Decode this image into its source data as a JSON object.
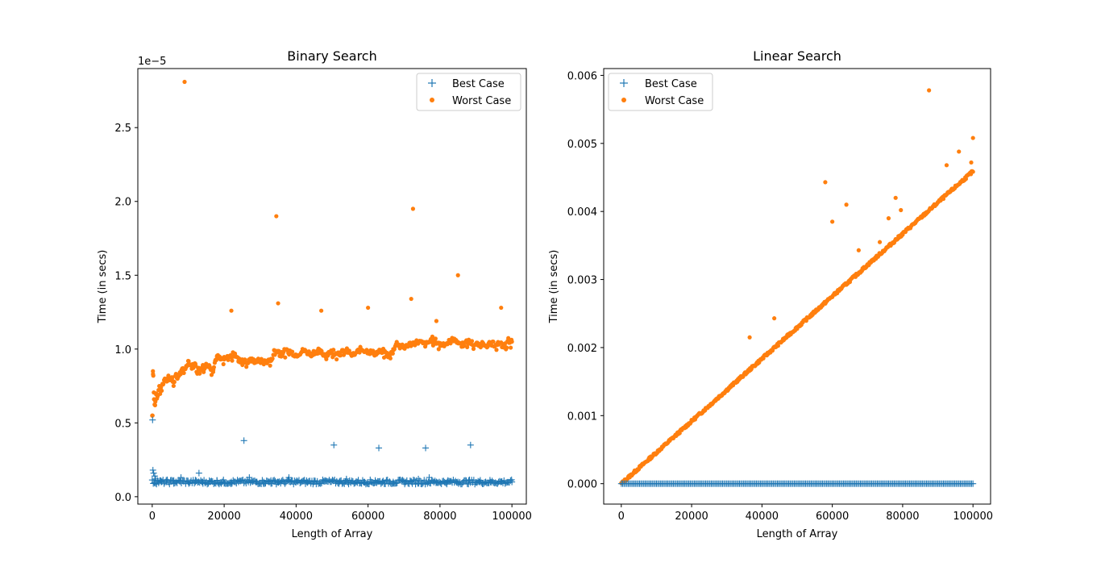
{
  "chart_data": [
    {
      "type": "scatter",
      "title": "Binary Search",
      "xlabel": "Length of Array",
      "ylabel": "Time (in secs)",
      "y_offset_label": "1e−5",
      "xlim": [
        -4000,
        104000
      ],
      "ylim": [
        -0.05,
        2.9
      ],
      "xticks": [
        0,
        20000,
        40000,
        60000,
        80000,
        100000
      ],
      "xtick_labels": [
        "0",
        "20000",
        "40000",
        "60000",
        "80000",
        "100000"
      ],
      "yticks": [
        0.0,
        0.5,
        1.0,
        1.5,
        2.0,
        2.5
      ],
      "ytick_labels": [
        "0.0",
        "0.5",
        "1.0",
        "1.5",
        "2.0",
        "2.5"
      ],
      "grid": false,
      "legend_position": "top-right",
      "series": [
        {
          "name": "Best Case",
          "marker": "plus",
          "color": "#1f77b4",
          "x": [
            100,
            200,
            400,
            700,
            1000,
            1500,
            2500,
            4000,
            6000,
            8000,
            10000,
            12000,
            13000,
            14000,
            16000,
            18000,
            20000,
            22000,
            24000,
            25500,
            27000,
            29000,
            31000,
            33000,
            35000,
            38000,
            40000,
            43000,
            45000,
            48000,
            50500,
            52000,
            54000,
            57000,
            59000,
            62000,
            63000,
            64000,
            67000,
            70000,
            72000,
            74000,
            76000,
            77000,
            79000,
            82000,
            85000,
            88000,
            88500,
            91000,
            94000,
            97000,
            100000
          ],
          "y": [
            0.52,
            0.18,
            0.16,
            0.14,
            0.12,
            0.11,
            0.1,
            0.1,
            0.11,
            0.13,
            0.1,
            0.1,
            0.16,
            0.1,
            0.1,
            0.11,
            0.09,
            0.1,
            0.1,
            0.38,
            0.13,
            0.1,
            0.1,
            0.11,
            0.1,
            0.13,
            0.1,
            0.1,
            0.1,
            0.11,
            0.35,
            0.1,
            0.12,
            0.1,
            0.1,
            0.11,
            0.33,
            0.1,
            0.1,
            0.1,
            0.1,
            0.12,
            0.33,
            0.13,
            0.1,
            0.1,
            0.1,
            0.11,
            0.35,
            0.1,
            0.1,
            0.1,
            0.1
          ]
        },
        {
          "name": "Worst Case",
          "marker": "dot",
          "color": "#ff7f0e",
          "x": [
            100,
            200,
            300,
            500,
            800,
            1100,
            1500,
            2000,
            2500,
            3000,
            3500,
            4000,
            4500,
            5000,
            5500,
            6000,
            6500,
            7000,
            7500,
            8000,
            8500,
            9000,
            9500,
            10000,
            11000,
            12000,
            13000,
            14000,
            15000,
            16000,
            17000,
            17500,
            18000,
            19000,
            20000,
            21000,
            22000,
            23000,
            24000,
            25000,
            26000,
            27000,
            28000,
            29000,
            30000,
            31000,
            32000,
            33000,
            34000,
            34500,
            35000,
            36000,
            38000,
            40000,
            42000,
            44000,
            46000,
            47000,
            48000,
            50000,
            52000,
            54000,
            56000,
            58000,
            60000,
            62000,
            64000,
            66000,
            67000,
            68000,
            70000,
            72000,
            72500,
            74000,
            76000,
            78000,
            79000,
            80000,
            82000,
            84000,
            85000,
            86000,
            88000,
            90000,
            92000,
            94000,
            96000,
            97000,
            98000,
            99000,
            100000
          ],
          "y": [
            0.55,
            0.85,
            0.82,
            0.66,
            0.62,
            0.7,
            0.68,
            0.75,
            0.72,
            0.76,
            0.8,
            0.78,
            0.82,
            0.79,
            0.8,
            0.78,
            0.82,
            0.8,
            0.83,
            0.84,
            0.86,
            2.81,
            0.88,
            0.92,
            0.88,
            0.9,
            0.86,
            0.88,
            0.9,
            0.88,
            0.86,
            0.92,
            0.95,
            0.93,
            0.93,
            0.94,
            1.26,
            0.97,
            0.92,
            0.93,
            0.91,
            0.93,
            0.92,
            0.92,
            0.92,
            0.91,
            0.92,
            0.92,
            0.99,
            1.9,
            1.31,
            0.98,
            0.99,
            0.96,
            0.99,
            0.97,
            0.99,
            1.26,
            0.96,
            0.99,
            0.97,
            0.99,
            0.96,
            1.0,
            1.28,
            0.97,
            0.99,
            0.95,
            1.0,
            1.04,
            1.02,
            1.34,
            1.95,
            1.05,
            1.03,
            1.07,
            1.19,
            1.03,
            1.04,
            1.07,
            1.5,
            1.03,
            1.05,
            1.03,
            1.04,
            1.03,
            1.04,
            1.28,
            1.02,
            1.06,
            1.05
          ]
        }
      ]
    },
    {
      "type": "scatter",
      "title": "Linear Search",
      "xlabel": "Length of Array",
      "ylabel": "Time (in secs)",
      "xlim": [
        -5000,
        105000
      ],
      "ylim": [
        -0.0003,
        0.0061
      ],
      "xticks": [
        0,
        20000,
        40000,
        60000,
        80000,
        100000
      ],
      "xtick_labels": [
        "0",
        "20000",
        "40000",
        "60000",
        "80000",
        "100000"
      ],
      "yticks": [
        0.0,
        0.001,
        0.002,
        0.003,
        0.004,
        0.005,
        0.006
      ],
      "ytick_labels": [
        "0.000",
        "0.001",
        "0.002",
        "0.003",
        "0.004",
        "0.005",
        "0.006"
      ],
      "grid": false,
      "legend_position": "top-left",
      "series": [
        {
          "name": "Best Case",
          "marker": "plus",
          "color": "#1f77b4",
          "x_range": [
            0,
            100000
          ],
          "y_constant": 0.0
        },
        {
          "name": "Worst Case",
          "marker": "dot",
          "color": "#ff7f0e",
          "x_range": [
            0,
            100000
          ],
          "linear_trend": [
            0.0,
            4.59e-08
          ],
          "x_outliers": [
            36500,
            43500,
            58000,
            60000,
            64000,
            67500,
            73500,
            76000,
            78000,
            79500,
            87500,
            92500,
            96000,
            99500,
            100000
          ],
          "y_outliers": [
            0.00215,
            0.00243,
            0.00443,
            0.00385,
            0.0041,
            0.00343,
            0.00355,
            0.0039,
            0.0042,
            0.00402,
            0.00578,
            0.00468,
            0.00488,
            0.00472,
            0.00508
          ]
        }
      ]
    }
  ]
}
